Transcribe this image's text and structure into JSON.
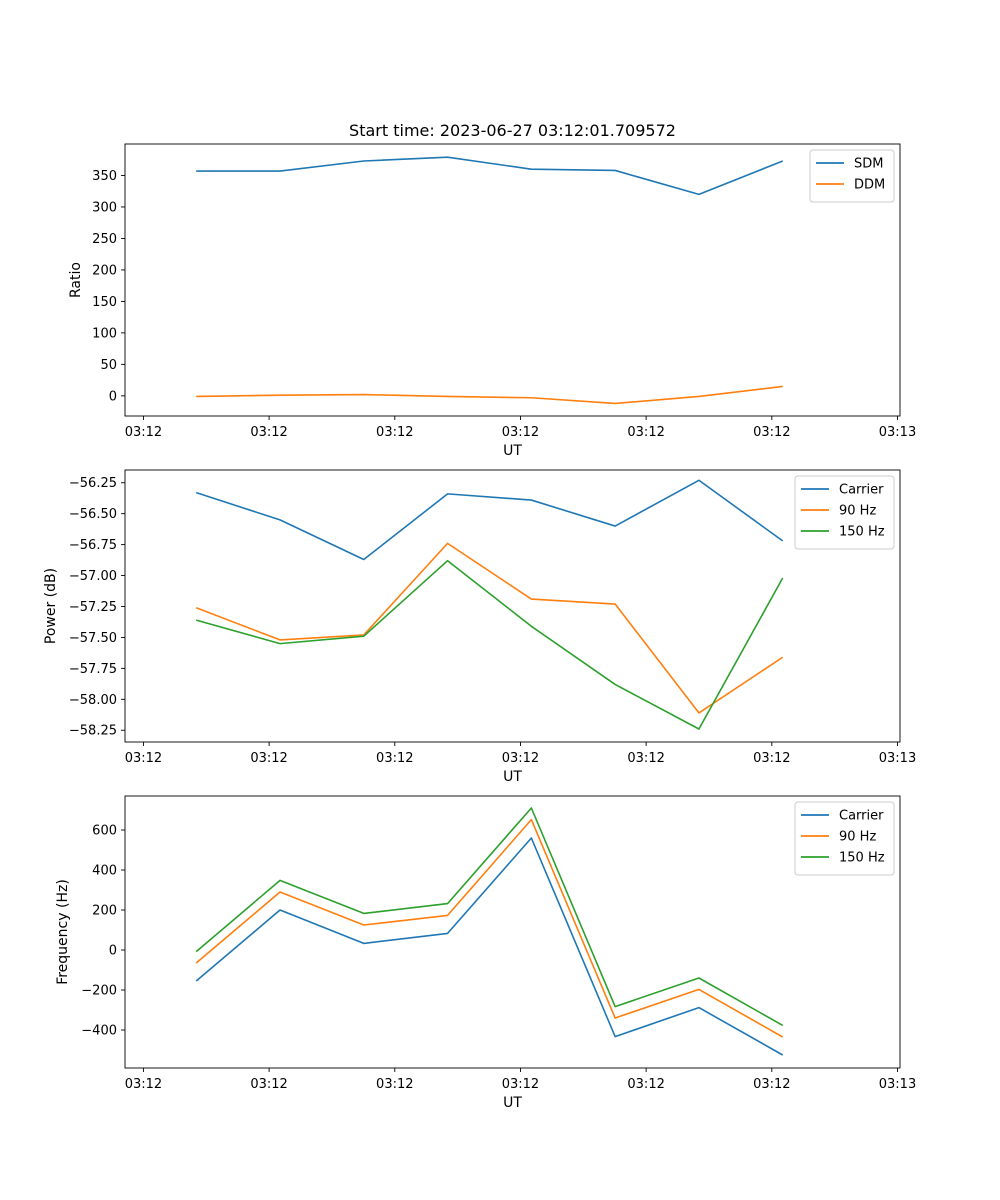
{
  "title": "Start time: 2023-06-27 03:12:01.709572",
  "chart_data": [
    {
      "type": "line",
      "title": "Start time: 2023-06-27 03:12:01.709572",
      "xlabel": "UT",
      "ylabel": "Ratio",
      "x": [
        1,
        2,
        3,
        4,
        5,
        6,
        7,
        8
      ],
      "xlim": [
        0.15,
        9.4
      ],
      "x_ticks": [
        0.37,
        1.87,
        3.37,
        4.87,
        6.37,
        7.87,
        9.37
      ],
      "x_tick_labels": [
        "03:12",
        "03:12",
        "03:12",
        "03:12",
        "03:12",
        "03:12",
        "03:13"
      ],
      "ylim": [
        -32,
        400
      ],
      "y_ticks": [
        0,
        50,
        100,
        150,
        200,
        250,
        300,
        350
      ],
      "y_tick_labels": [
        "0",
        "50",
        "100",
        "150",
        "200",
        "250",
        "300",
        "350"
      ],
      "legend_position": "top-right",
      "series": [
        {
          "name": "SDM",
          "color": "#1f77b4",
          "values": [
            357,
            357,
            373,
            379,
            360,
            358,
            320,
            373
          ]
        },
        {
          "name": "DDM",
          "color": "#ff7f0e",
          "values": [
            -1,
            1,
            2,
            -1,
            -3,
            -12,
            -1,
            15
          ]
        }
      ]
    },
    {
      "type": "line",
      "xlabel": "UT",
      "ylabel": "Power (dB)",
      "x": [
        1,
        2,
        3,
        4,
        5,
        6,
        7,
        8
      ],
      "xlim": [
        0.15,
        9.4
      ],
      "x_ticks": [
        0.37,
        1.87,
        3.37,
        4.87,
        6.37,
        7.87,
        9.37
      ],
      "x_tick_labels": [
        "03:12",
        "03:12",
        "03:12",
        "03:12",
        "03:12",
        "03:12",
        "03:13"
      ],
      "ylim": [
        -58.345,
        -56.147
      ],
      "y_ticks": [
        -56.25,
        -56.5,
        -56.75,
        -57.0,
        -57.25,
        -57.5,
        -57.75,
        -58.0,
        -58.25
      ],
      "y_tick_labels": [
        "−56.25",
        "−56.50",
        "−56.75",
        "−57.00",
        "−57.25",
        "−57.50",
        "−57.75",
        "−58.00",
        "−58.25"
      ],
      "legend_position": "top-right",
      "series": [
        {
          "name": "Carrier",
          "color": "#1f77b4",
          "values": [
            -56.33,
            -56.55,
            -56.87,
            -56.34,
            -56.39,
            -56.6,
            -56.23,
            -56.72
          ]
        },
        {
          "name": "90 Hz",
          "color": "#ff7f0e",
          "values": [
            -57.26,
            -57.52,
            -57.48,
            -56.74,
            -57.19,
            -57.23,
            -58.11,
            -57.66
          ]
        },
        {
          "name": "150 Hz",
          "color": "#2ca02c",
          "values": [
            -57.36,
            -57.55,
            -57.49,
            -56.88,
            -57.41,
            -57.88,
            -58.24,
            -57.02
          ]
        }
      ]
    },
    {
      "type": "line",
      "xlabel": "UT",
      "ylabel": "Frequency (Hz)",
      "x": [
        1,
        2,
        3,
        4,
        5,
        6,
        7,
        8
      ],
      "xlim": [
        0.15,
        9.4
      ],
      "x_ticks": [
        0.37,
        1.87,
        3.37,
        4.87,
        6.37,
        7.87,
        9.37
      ],
      "x_tick_labels": [
        "03:12",
        "03:12",
        "03:12",
        "03:12",
        "03:12",
        "03:12",
        "03:13"
      ],
      "ylim": [
        -590,
        770
      ],
      "y_ticks": [
        -400,
        -200,
        0,
        200,
        400,
        600
      ],
      "y_tick_labels": [
        "−400",
        "−200",
        "0",
        "200",
        "400",
        "600"
      ],
      "legend_position": "top-right",
      "series": [
        {
          "name": "Carrier",
          "color": "#1f77b4",
          "values": [
            -155,
            200,
            33,
            83,
            560,
            -433,
            -288,
            -525
          ]
        },
        {
          "name": "90 Hz",
          "color": "#ff7f0e",
          "values": [
            -65,
            290,
            125,
            173,
            652,
            -340,
            -197,
            -435
          ]
        },
        {
          "name": "150 Hz",
          "color": "#2ca02c",
          "values": [
            -8,
            348,
            183,
            232,
            710,
            -283,
            -140,
            -377
          ]
        }
      ]
    }
  ]
}
